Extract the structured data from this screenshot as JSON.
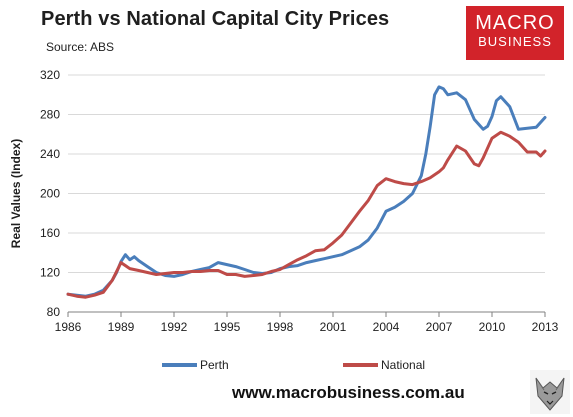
{
  "header": {
    "title": "Perth vs National Capital City Prices",
    "source": "Source: ABS",
    "logo_line1": "MACRO",
    "logo_line2": "BUSINESS"
  },
  "footer": {
    "url": "www.macrobusiness.com.au"
  },
  "colors": {
    "perth": "#4a7ebb",
    "national": "#be4b48",
    "logo_bg": "#d2232a",
    "grid": "#d9d9d9"
  },
  "chart_data": {
    "type": "line",
    "title": "Perth vs National Capital City Prices",
    "xlabel": "",
    "ylabel": "Real Values (Index)",
    "xlim": [
      1986,
      2013
    ],
    "ylim": [
      80,
      320
    ],
    "x_ticks": [
      "1986",
      "1989",
      "1992",
      "1995",
      "1998",
      "2001",
      "2004",
      "2007",
      "2010",
      "2013"
    ],
    "y_ticks": [
      "80",
      "120",
      "160",
      "200",
      "240",
      "280",
      "320"
    ],
    "grid": "horizontal",
    "legend": "bottom",
    "series": [
      {
        "name": "Perth",
        "color": "#4a7ebb",
        "x": [
          1986.0,
          1986.5,
          1987.0,
          1987.5,
          1988.0,
          1988.5,
          1988.75,
          1989.0,
          1989.25,
          1989.5,
          1989.75,
          1990.0,
          1990.5,
          1991.0,
          1991.5,
          1992.0,
          1992.5,
          1993.0,
          1993.5,
          1994.0,
          1994.5,
          1995.0,
          1995.5,
          1996.0,
          1996.5,
          1997.0,
          1997.5,
          1998.0,
          1998.5,
          1999.0,
          1999.5,
          2000.0,
          2000.5,
          2001.0,
          2001.5,
          2002.0,
          2002.5,
          2003.0,
          2003.5,
          2004.0,
          2004.5,
          2005.0,
          2005.5,
          2006.0,
          2006.25,
          2006.5,
          2006.75,
          2007.0,
          2007.25,
          2007.5,
          2008.0,
          2008.5,
          2009.0,
          2009.5,
          2009.75,
          2010.0,
          2010.25,
          2010.5,
          2011.0,
          2011.5,
          2012.0,
          2012.5,
          2012.75,
          2013.0
        ],
        "y": [
          98,
          97,
          96,
          98,
          102,
          112,
          120,
          131,
          138,
          133,
          136,
          132,
          126,
          120,
          117,
          116,
          118,
          121,
          123,
          125,
          130,
          128,
          126,
          123,
          120,
          119,
          120,
          124,
          126,
          127,
          130,
          132,
          134,
          136,
          138,
          142,
          146,
          153,
          165,
          182,
          186,
          192,
          200,
          218,
          240,
          268,
          300,
          308,
          306,
          300,
          302,
          295,
          275,
          265,
          268,
          278,
          294,
          298,
          288,
          265,
          266,
          267,
          272,
          277
        ]
      },
      {
        "name": "National",
        "color": "#be4b48",
        "x": [
          1986.0,
          1986.5,
          1987.0,
          1987.5,
          1988.0,
          1988.5,
          1989.0,
          1989.5,
          1990.0,
          1990.5,
          1991.0,
          1991.5,
          1992.0,
          1992.5,
          1993.0,
          1993.5,
          1994.0,
          1994.5,
          1995.0,
          1995.5,
          1996.0,
          1996.5,
          1997.0,
          1997.5,
          1998.0,
          1998.5,
          1999.0,
          1999.5,
          2000.0,
          2000.5,
          2001.0,
          2001.5,
          2002.0,
          2002.5,
          2003.0,
          2003.5,
          2004.0,
          2004.5,
          2005.0,
          2005.5,
          2006.0,
          2006.5,
          2007.0,
          2007.25,
          2007.5,
          2008.0,
          2008.5,
          2009.0,
          2009.25,
          2009.5,
          2010.0,
          2010.5,
          2011.0,
          2011.5,
          2012.0,
          2012.5,
          2012.75,
          2013.0
        ],
        "y": [
          98,
          96,
          95,
          97,
          100,
          112,
          130,
          124,
          122,
          120,
          118,
          119,
          120,
          120,
          121,
          121,
          122,
          122,
          118,
          118,
          116,
          117,
          118,
          121,
          123,
          128,
          133,
          137,
          142,
          143,
          150,
          158,
          170,
          182,
          193,
          208,
          215,
          212,
          210,
          209,
          212,
          216,
          222,
          226,
          234,
          248,
          243,
          230,
          228,
          236,
          256,
          262,
          258,
          252,
          242,
          242,
          238,
          243
        ]
      }
    ]
  }
}
